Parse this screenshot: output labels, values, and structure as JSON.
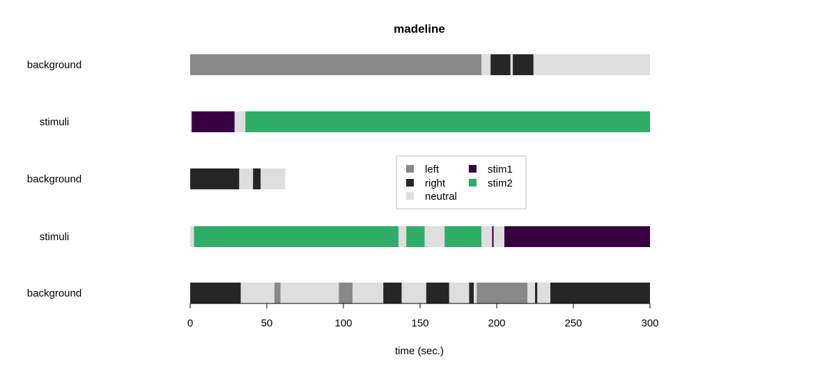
{
  "chart_data": {
    "type": "timeline",
    "title": "madeline",
    "xlabel": "time (sec.)",
    "xlim": [
      0,
      300
    ],
    "xticks": [
      0,
      50,
      100,
      150,
      200,
      250,
      300
    ],
    "colors": {
      "left": "#888888",
      "right": "#262626",
      "neutral": "#dedede",
      "stim1": "#380040",
      "stim2": "#2fad67"
    },
    "legend": {
      "position": "center",
      "entries": [
        {
          "key": "left",
          "label": "left"
        },
        {
          "key": "right",
          "label": "right"
        },
        {
          "key": "neutral",
          "label": "neutral"
        },
        {
          "key": "stim1",
          "label": "stim1"
        },
        {
          "key": "stim2",
          "label": "stim2"
        }
      ]
    },
    "rows": [
      {
        "label": "background",
        "segments": [
          {
            "start": 0,
            "end": 190,
            "cat": "left"
          },
          {
            "start": 190,
            "end": 196,
            "cat": "neutral"
          },
          {
            "start": 196,
            "end": 209,
            "cat": "right"
          },
          {
            "start": 209,
            "end": 210.5,
            "cat": "neutral"
          },
          {
            "start": 210.5,
            "end": 224,
            "cat": "right"
          },
          {
            "start": 224,
            "end": 300,
            "cat": "neutral"
          }
        ]
      },
      {
        "label": "stimuli",
        "segments": [
          {
            "start": 0,
            "end": 1,
            "cat": "neutral"
          },
          {
            "start": 1,
            "end": 29,
            "cat": "stim1"
          },
          {
            "start": 29,
            "end": 36,
            "cat": "neutral"
          },
          {
            "start": 36,
            "end": 300,
            "cat": "stim2"
          }
        ]
      },
      {
        "label": "background",
        "segments": [
          {
            "start": 0,
            "end": 32,
            "cat": "right"
          },
          {
            "start": 32,
            "end": 41,
            "cat": "neutral"
          },
          {
            "start": 41,
            "end": 46,
            "cat": "right"
          },
          {
            "start": 46,
            "end": 62,
            "cat": "neutral"
          }
        ]
      },
      {
        "label": "stimuli",
        "segments": [
          {
            "start": 0,
            "end": 2.5,
            "cat": "neutral"
          },
          {
            "start": 2.5,
            "end": 136,
            "cat": "stim2"
          },
          {
            "start": 136,
            "end": 141,
            "cat": "neutral"
          },
          {
            "start": 141,
            "end": 153,
            "cat": "stim2"
          },
          {
            "start": 153,
            "end": 166,
            "cat": "neutral"
          },
          {
            "start": 166,
            "end": 190,
            "cat": "stim2"
          },
          {
            "start": 190,
            "end": 197,
            "cat": "neutral"
          },
          {
            "start": 197,
            "end": 198,
            "cat": "stim1"
          },
          {
            "start": 198,
            "end": 205,
            "cat": "neutral"
          },
          {
            "start": 205,
            "end": 300,
            "cat": "stim1"
          }
        ]
      },
      {
        "label": "background",
        "segments": [
          {
            "start": 0,
            "end": 33,
            "cat": "right"
          },
          {
            "start": 33,
            "end": 55,
            "cat": "neutral"
          },
          {
            "start": 55,
            "end": 59,
            "cat": "left"
          },
          {
            "start": 59,
            "end": 97,
            "cat": "neutral"
          },
          {
            "start": 97,
            "end": 106,
            "cat": "left"
          },
          {
            "start": 106,
            "end": 126,
            "cat": "neutral"
          },
          {
            "start": 126,
            "end": 138,
            "cat": "right"
          },
          {
            "start": 138,
            "end": 154,
            "cat": "neutral"
          },
          {
            "start": 154,
            "end": 169,
            "cat": "right"
          },
          {
            "start": 169,
            "end": 182,
            "cat": "neutral"
          },
          {
            "start": 182,
            "end": 185,
            "cat": "right"
          },
          {
            "start": 185,
            "end": 187,
            "cat": "neutral"
          },
          {
            "start": 187,
            "end": 210,
            "cat": "left"
          },
          {
            "start": 210,
            "end": 220,
            "cat": "left"
          },
          {
            "start": 220,
            "end": 225,
            "cat": "neutral"
          },
          {
            "start": 225,
            "end": 226.5,
            "cat": "right"
          },
          {
            "start": 226.5,
            "end": 235,
            "cat": "neutral"
          },
          {
            "start": 235,
            "end": 300,
            "cat": "right"
          }
        ]
      }
    ]
  }
}
